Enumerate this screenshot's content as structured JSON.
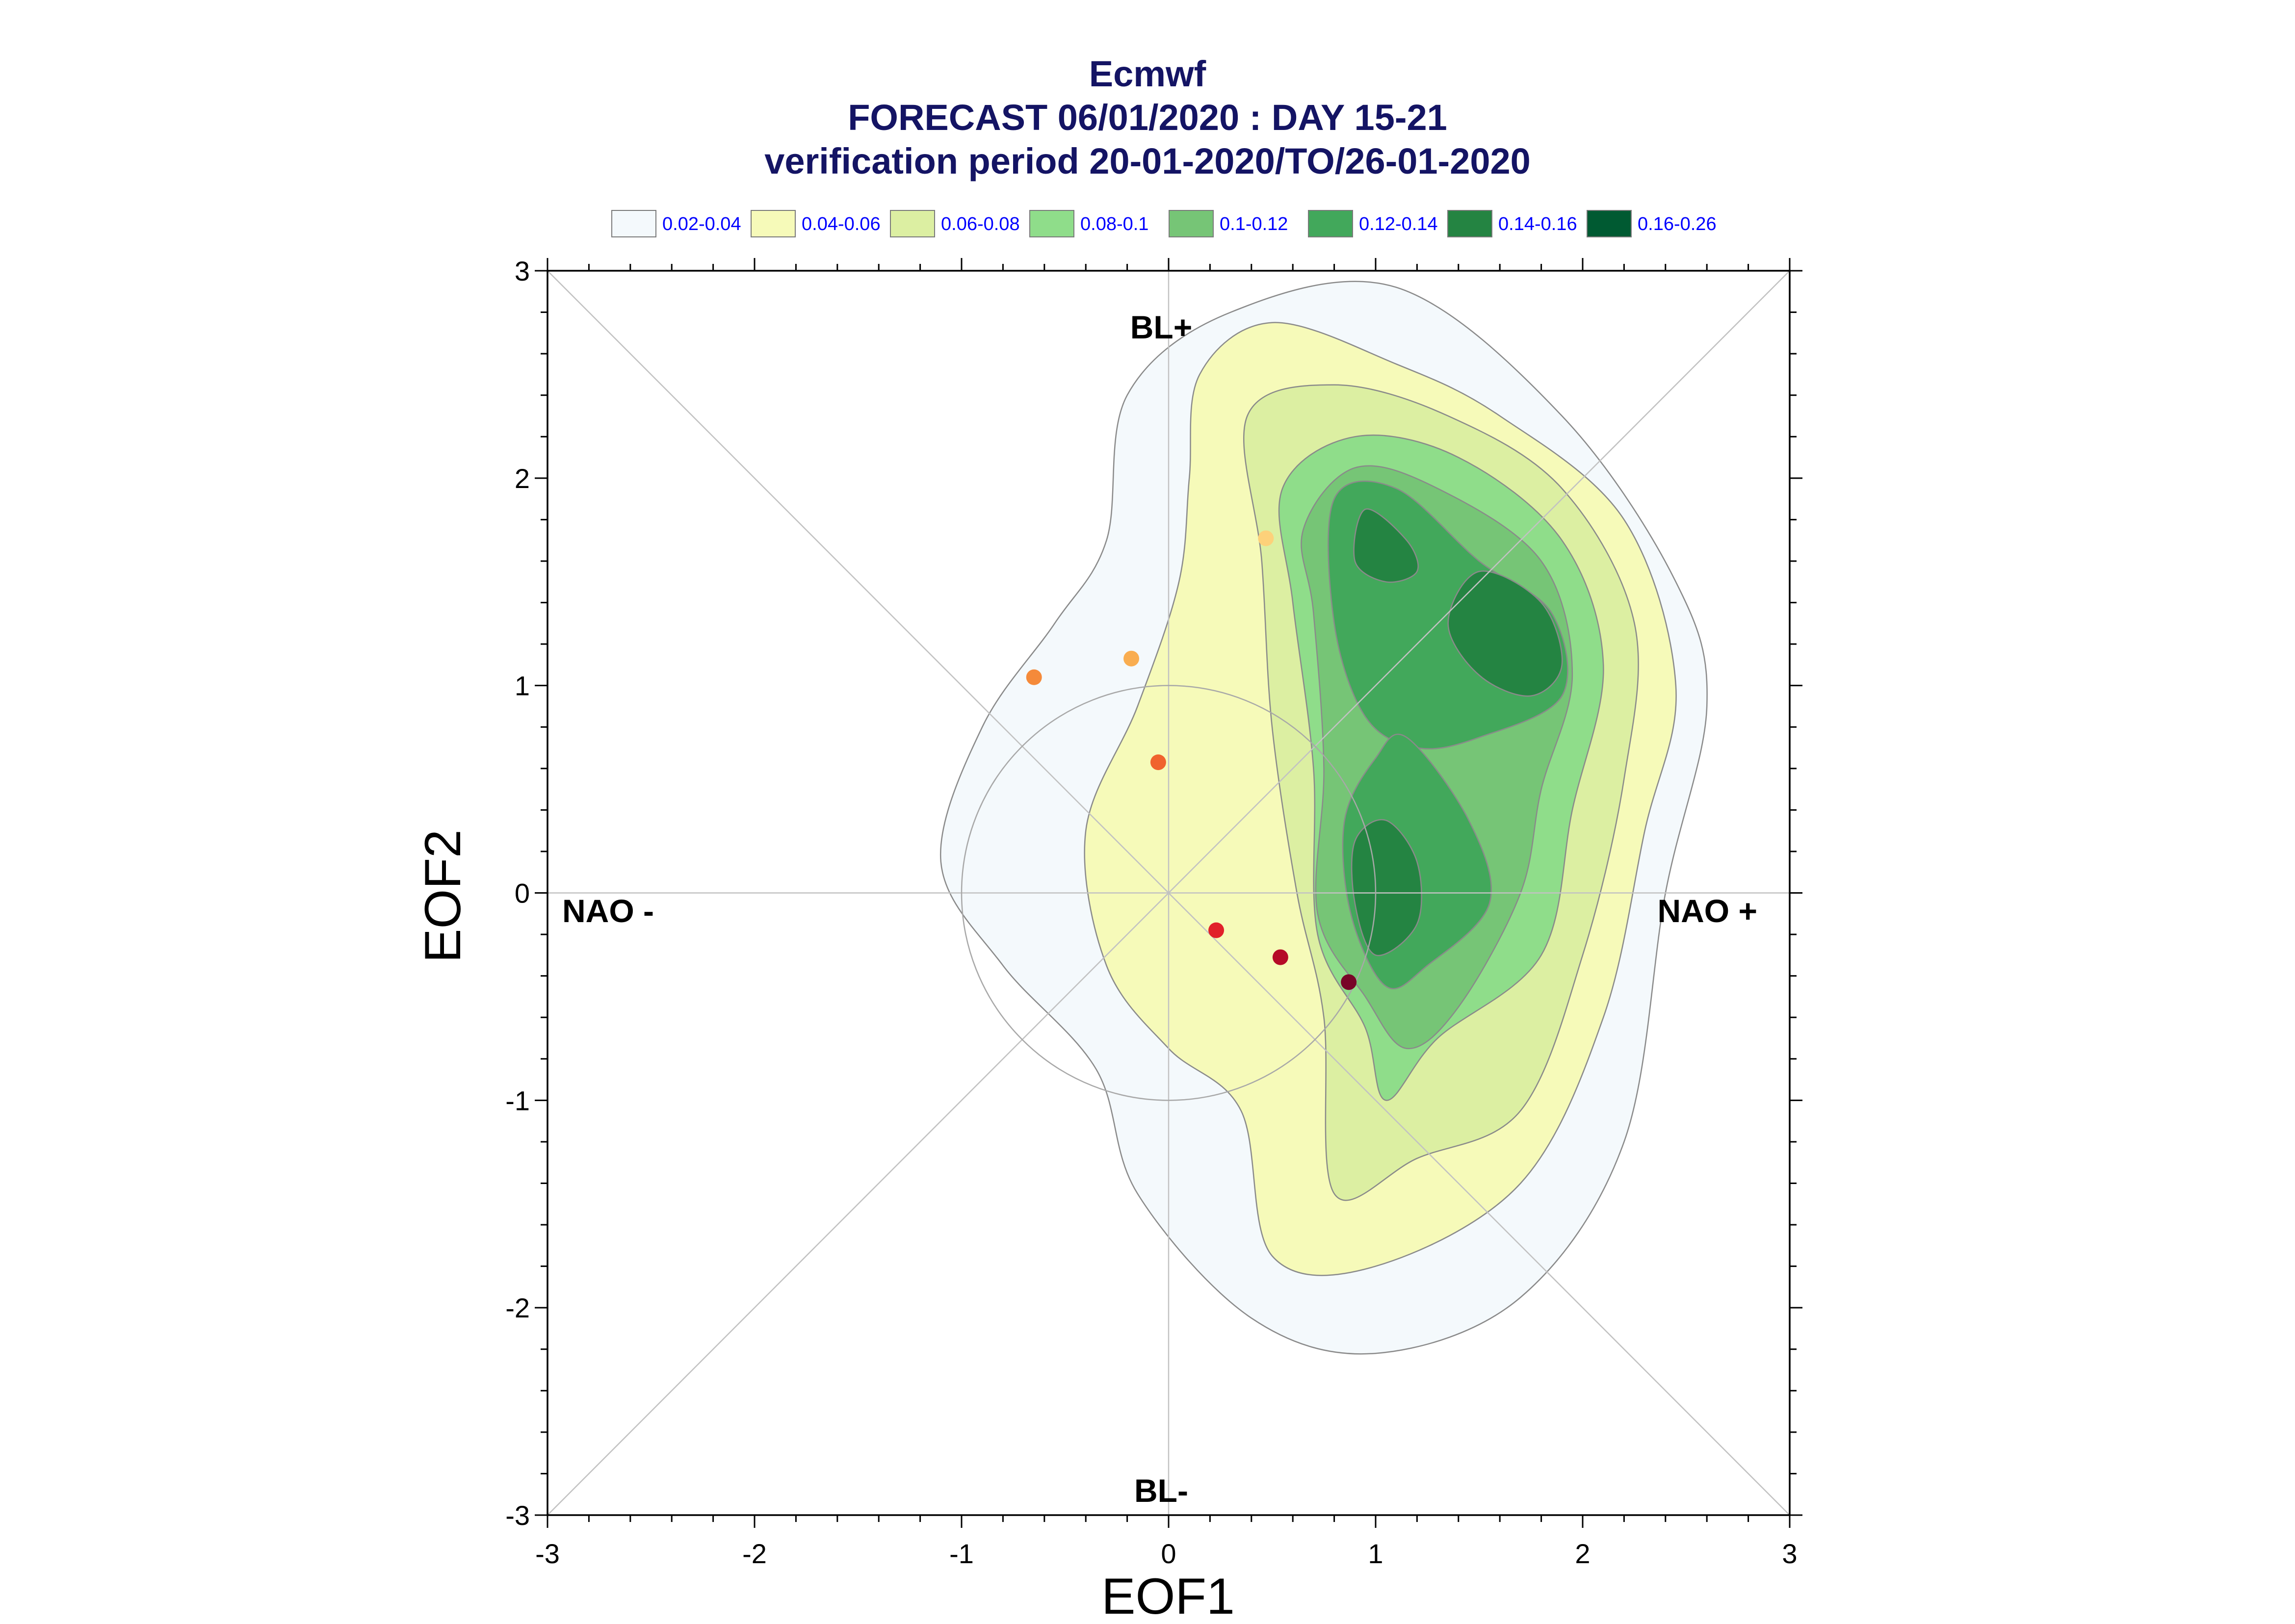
{
  "chart_data": {
    "type": "contour",
    "title_lines": [
      "Ecmwf",
      "FORECAST 06/01/2020 : DAY 15-21",
      "verification period 20-01-2020/TO/26-01-2020"
    ],
    "xlabel": "EOF1",
    "ylabel": "EOF2",
    "xlim": [
      -3,
      3
    ],
    "ylim": [
      -3,
      3
    ],
    "xticks": [
      -3,
      -2,
      -1,
      0,
      1,
      2,
      3
    ],
    "yticks": [
      -3,
      -2,
      -1,
      0,
      1,
      2,
      3
    ],
    "regime_labels": {
      "top": "BL+",
      "bottom": "BL-",
      "left": "NAO -",
      "right": "NAO +"
    },
    "legend": [
      {
        "label": "0.02-0.04",
        "color": "#f4f9fc"
      },
      {
        "label": "0.04-0.06",
        "color": "#f6fab9"
      },
      {
        "label": "0.06-0.08",
        "color": "#dcefa2"
      },
      {
        "label": "0.08-0.1",
        "color": "#8fdd8a"
      },
      {
        "label": "0.1-0.12",
        "color": "#76c576"
      },
      {
        "label": "0.12-0.14",
        "color": "#42a85b"
      },
      {
        "label": "0.14-0.16",
        "color": "#248442"
      },
      {
        "label": "0.16-0.26",
        "color": "#005a32"
      }
    ],
    "contours": [
      {
        "level": "0.02-0.04",
        "points": [
          [
            -0.2,
            2.4
          ],
          [
            0.3,
            2.8
          ],
          [
            1.1,
            2.92
          ],
          [
            1.9,
            2.3
          ],
          [
            2.45,
            1.5
          ],
          [
            2.6,
            0.9
          ],
          [
            2.4,
            0.0
          ],
          [
            2.2,
            -1.2
          ],
          [
            1.7,
            -1.95
          ],
          [
            1.0,
            -2.22
          ],
          [
            0.4,
            -2.05
          ],
          [
            -0.15,
            -1.45
          ],
          [
            -0.35,
            -0.85
          ],
          [
            -0.8,
            -0.35
          ],
          [
            -1.1,
            0.15
          ],
          [
            -0.9,
            0.8
          ],
          [
            -0.55,
            1.3
          ],
          [
            -0.3,
            1.7
          ]
        ]
      },
      {
        "level": "0.04-0.06",
        "points": [
          [
            0.15,
            2.5
          ],
          [
            0.5,
            2.75
          ],
          [
            1.1,
            2.55
          ],
          [
            1.6,
            2.3
          ],
          [
            2.2,
            1.8
          ],
          [
            2.45,
            1.0
          ],
          [
            2.3,
            0.3
          ],
          [
            2.1,
            -0.6
          ],
          [
            1.7,
            -1.4
          ],
          [
            1.0,
            -1.8
          ],
          [
            0.5,
            -1.75
          ],
          [
            0.35,
            -1.05
          ],
          [
            0.0,
            -0.75
          ],
          [
            -0.3,
            -0.35
          ],
          [
            -0.4,
            0.3
          ],
          [
            -0.15,
            0.9
          ],
          [
            0.05,
            1.5
          ],
          [
            0.1,
            2.0
          ]
        ]
      },
      {
        "level": "0.06-0.08",
        "points": [
          [
            0.38,
            2.3
          ],
          [
            0.8,
            2.45
          ],
          [
            1.35,
            2.3
          ],
          [
            1.9,
            1.95
          ],
          [
            2.25,
            1.3
          ],
          [
            2.2,
            0.55
          ],
          [
            2.0,
            -0.3
          ],
          [
            1.7,
            -1.05
          ],
          [
            1.2,
            -1.28
          ],
          [
            0.8,
            -1.45
          ],
          [
            0.75,
            -0.6
          ],
          [
            0.62,
            0.0
          ],
          [
            0.5,
            0.8
          ],
          [
            0.45,
            1.6
          ]
        ]
      },
      {
        "level": "0.08-0.1",
        "points": [
          [
            0.55,
            1.95
          ],
          [
            0.9,
            2.2
          ],
          [
            1.4,
            2.1
          ],
          [
            1.9,
            1.7
          ],
          [
            2.1,
            1.1
          ],
          [
            1.95,
            0.4
          ],
          [
            1.8,
            -0.3
          ],
          [
            1.3,
            -0.7
          ],
          [
            1.05,
            -1.0
          ],
          [
            0.95,
            -0.65
          ],
          [
            0.72,
            -0.2
          ],
          [
            0.7,
            0.6
          ],
          [
            0.6,
            1.4
          ]
        ]
      },
      {
        "level": "0.1-0.12",
        "points": [
          [
            0.65,
            1.75
          ],
          [
            0.9,
            2.05
          ],
          [
            1.3,
            1.95
          ],
          [
            1.8,
            1.6
          ],
          [
            1.95,
            1.05
          ],
          [
            1.8,
            0.5
          ],
          [
            1.7,
            0.0
          ],
          [
            1.4,
            -0.55
          ],
          [
            1.15,
            -0.75
          ],
          [
            0.95,
            -0.5
          ],
          [
            0.72,
            -0.1
          ],
          [
            0.75,
            0.6
          ],
          [
            0.7,
            1.35
          ]
        ]
      },
      {
        "level": "0.12-0.14",
        "points": [
          [
            0.8,
            1.9
          ],
          [
            1.1,
            1.95
          ],
          [
            1.5,
            1.6
          ],
          [
            1.85,
            1.35
          ],
          [
            1.9,
            0.95
          ],
          [
            1.5,
            0.75
          ],
          [
            1.2,
            0.7
          ],
          [
            0.95,
            0.85
          ],
          [
            0.8,
            1.3
          ]
        ]
      },
      {
        "level": "0.12-0.14",
        "points": [
          [
            1.15,
            0.75
          ],
          [
            1.45,
            0.35
          ],
          [
            1.55,
            -0.05
          ],
          [
            1.25,
            -0.35
          ],
          [
            1.05,
            -0.45
          ],
          [
            0.88,
            -0.1
          ],
          [
            0.85,
            0.35
          ],
          [
            1.0,
            0.65
          ]
        ]
      },
      {
        "level": "0.14-0.16",
        "points": [
          [
            0.95,
            1.85
          ],
          [
            1.15,
            1.7
          ],
          [
            1.2,
            1.55
          ],
          [
            1.05,
            1.5
          ],
          [
            0.9,
            1.6
          ]
        ]
      },
      {
        "level": "0.14-0.16",
        "points": [
          [
            1.5,
            1.55
          ],
          [
            1.8,
            1.4
          ],
          [
            1.9,
            1.1
          ],
          [
            1.75,
            0.95
          ],
          [
            1.5,
            1.05
          ],
          [
            1.35,
            1.3
          ]
        ]
      },
      {
        "level": "0.14-0.16",
        "points": [
          [
            1.05,
            0.35
          ],
          [
            1.2,
            0.15
          ],
          [
            1.2,
            -0.15
          ],
          [
            1.0,
            -0.3
          ],
          [
            0.9,
            -0.05
          ],
          [
            0.9,
            0.25
          ]
        ]
      }
    ],
    "reference_circle_radius": 1,
    "points": [
      {
        "x": 0.47,
        "y": 1.71,
        "color": "#fdd17a"
      },
      {
        "x": -0.18,
        "y": 1.13,
        "color": "#f9ad50"
      },
      {
        "x": -0.65,
        "y": 1.04,
        "color": "#f58a3a"
      },
      {
        "x": -0.05,
        "y": 0.63,
        "color": "#f0632e"
      },
      {
        "x": 0.23,
        "y": -0.18,
        "color": "#e1202a"
      },
      {
        "x": 0.54,
        "y": -0.31,
        "color": "#b50b27"
      },
      {
        "x": 0.87,
        "y": -0.43,
        "color": "#780528"
      }
    ]
  }
}
